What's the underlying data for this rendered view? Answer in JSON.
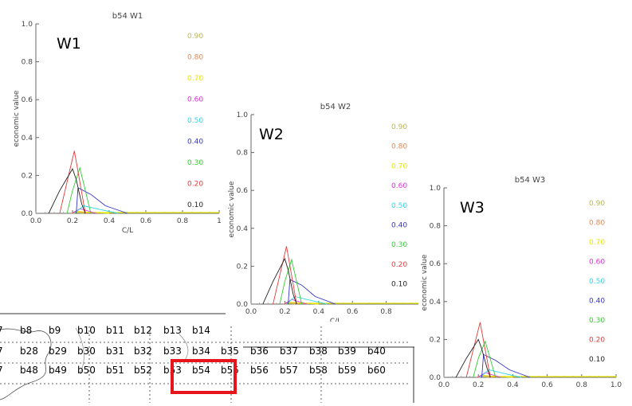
{
  "map": {
    "rows": [
      {
        "labels": [
          "7",
          "b8",
          "b9",
          "b10",
          "b11",
          "b12",
          "b13",
          "b14"
        ]
      },
      {
        "labels": [
          "7",
          "b28",
          "b29",
          "b30",
          "b31",
          "b32",
          "b33",
          "b34",
          "b35",
          "b36",
          "b37",
          "b38",
          "b39",
          "b40"
        ]
      },
      {
        "labels": [
          "7",
          "b48",
          "b49",
          "b50",
          "b51",
          "b52",
          "b53",
          "b54",
          "b55",
          "b56",
          "b57",
          "b58",
          "b59",
          "b60"
        ]
      }
    ],
    "highlight_box": "b54",
    "highlight_color": "#e8141c"
  },
  "chart_data": [
    {
      "type": "line",
      "title": "b54 W1",
      "panel_label": "W1",
      "xlabel": "C/L",
      "ylabel": "economic value",
      "xlim": [
        0,
        1
      ],
      "ylim": [
        0,
        1
      ],
      "xticks": [
        "0.0",
        "0.2",
        "0.4",
        "0.6",
        "0.8",
        "1"
      ],
      "yticks": [
        "0.0",
        "0.2",
        "0.4",
        "0.6",
        "0.8",
        "1.0"
      ],
      "series": [
        {
          "name": "0.90",
          "color": "#b8b85a",
          "x": [
            0.2,
            0.225,
            0.26
          ],
          "y": [
            0,
            0.004,
            0
          ]
        },
        {
          "name": "0.80",
          "color": "#e88858",
          "x": [
            0.19,
            0.22,
            0.28
          ],
          "y": [
            0,
            0.012,
            0
          ]
        },
        {
          "name": "0.70",
          "color": "#e6e600",
          "x": [
            0.2,
            0.23,
            0.3,
            0.4
          ],
          "y": [
            0,
            0.01,
            0.005,
            0
          ]
        },
        {
          "name": "0.60",
          "color": "#dd30dd",
          "x": [
            0.2,
            0.24,
            0.33
          ],
          "y": [
            0,
            0.025,
            0
          ]
        },
        {
          "name": "0.50",
          "color": "#30d8e8",
          "x": [
            0.21,
            0.26,
            0.35,
            0.45
          ],
          "y": [
            0,
            0.04,
            0.02,
            0
          ]
        },
        {
          "name": "0.40",
          "color": "#3333cc",
          "x": [
            0.22,
            0.23,
            0.3,
            0.38,
            0.5
          ],
          "y": [
            0,
            0.135,
            0.1,
            0.04,
            0
          ]
        },
        {
          "name": "0.30",
          "color": "#33cc33",
          "x": [
            0.17,
            0.2,
            0.24,
            0.3
          ],
          "y": [
            0,
            0.12,
            0.24,
            0
          ]
        },
        {
          "name": "0.20",
          "color": "#e63b3b",
          "x": [
            0.13,
            0.21,
            0.27
          ],
          "y": [
            0,
            0.33,
            0
          ]
        },
        {
          "name": "0.10",
          "color": "#222222",
          "x": [
            0.07,
            0.13,
            0.2,
            0.22,
            0.25,
            0.27
          ],
          "y": [
            0,
            0.12,
            0.235,
            0.18,
            0.05,
            0
          ]
        }
      ]
    },
    {
      "type": "line",
      "title": "b54 W2",
      "panel_label": "W2",
      "xlabel": "C/L",
      "ylabel": "economic value",
      "xlim": [
        0,
        1
      ],
      "ylim": [
        0,
        1
      ],
      "xticks": [
        "0.0",
        "0.2",
        "0.4",
        "0.6",
        "0.8"
      ],
      "yticks": [
        "0.0",
        "0.2",
        "0.4",
        "0.6",
        "0.8",
        "1.0"
      ],
      "series": [
        {
          "name": "0.90",
          "color": "#b8b85a",
          "x": [
            0.2,
            0.225,
            0.26
          ],
          "y": [
            0,
            0.004,
            0
          ]
        },
        {
          "name": "0.80",
          "color": "#e88858",
          "x": [
            0.19,
            0.22,
            0.28
          ],
          "y": [
            0,
            0.012,
            0
          ]
        },
        {
          "name": "0.70",
          "color": "#e6e600",
          "x": [
            0.2,
            0.23,
            0.3,
            0.4
          ],
          "y": [
            0,
            0.01,
            0.005,
            0
          ]
        },
        {
          "name": "0.60",
          "color": "#dd30dd",
          "x": [
            0.2,
            0.24,
            0.33
          ],
          "y": [
            0,
            0.025,
            0
          ]
        },
        {
          "name": "0.50",
          "color": "#30d8e8",
          "x": [
            0.21,
            0.26,
            0.35,
            0.45
          ],
          "y": [
            0,
            0.04,
            0.02,
            0
          ]
        },
        {
          "name": "0.40",
          "color": "#3333cc",
          "x": [
            0.22,
            0.23,
            0.3,
            0.38,
            0.5
          ],
          "y": [
            0,
            0.13,
            0.1,
            0.04,
            0
          ]
        },
        {
          "name": "0.30",
          "color": "#33cc33",
          "x": [
            0.17,
            0.2,
            0.24,
            0.3
          ],
          "y": [
            0,
            0.12,
            0.235,
            0
          ]
        },
        {
          "name": "0.20",
          "color": "#e63b3b",
          "x": [
            0.13,
            0.21,
            0.27
          ],
          "y": [
            0,
            0.305,
            0
          ]
        },
        {
          "name": "0.10",
          "color": "#222222",
          "x": [
            0.07,
            0.13,
            0.2,
            0.22,
            0.25,
            0.27
          ],
          "y": [
            0,
            0.12,
            0.24,
            0.18,
            0.05,
            0
          ]
        }
      ]
    },
    {
      "type": "line",
      "title": "b54 W3",
      "panel_label": "W3",
      "xlabel": "",
      "ylabel": "economic value",
      "xlim": [
        0,
        1
      ],
      "ylim": [
        0,
        1
      ],
      "xticks": [
        "0.0",
        "0.2",
        "0.4",
        "0.6",
        "0.8",
        "1.0"
      ],
      "yticks": [
        "0.0",
        "0.2",
        "0.4",
        "0.6",
        "0.8",
        "1.0"
      ],
      "series": [
        {
          "name": "0.90",
          "color": "#b8b85a",
          "x": [
            0.2,
            0.225,
            0.26
          ],
          "y": [
            0,
            0.004,
            0
          ]
        },
        {
          "name": "0.80",
          "color": "#e88858",
          "x": [
            0.19,
            0.22,
            0.28
          ],
          "y": [
            0,
            0.012,
            0
          ]
        },
        {
          "name": "0.70",
          "color": "#e6e600",
          "x": [
            0.2,
            0.23,
            0.3,
            0.4
          ],
          "y": [
            0,
            0.01,
            0.005,
            0
          ]
        },
        {
          "name": "0.60",
          "color": "#dd30dd",
          "x": [
            0.2,
            0.24,
            0.33
          ],
          "y": [
            0,
            0.025,
            0
          ]
        },
        {
          "name": "0.50",
          "color": "#30d8e8",
          "x": [
            0.21,
            0.26,
            0.35,
            0.45
          ],
          "y": [
            0,
            0.04,
            0.02,
            0
          ]
        },
        {
          "name": "0.40",
          "color": "#3333cc",
          "x": [
            0.22,
            0.23,
            0.3,
            0.38,
            0.5
          ],
          "y": [
            0,
            0.12,
            0.09,
            0.04,
            0
          ]
        },
        {
          "name": "0.30",
          "color": "#33cc33",
          "x": [
            0.17,
            0.2,
            0.24,
            0.3
          ],
          "y": [
            0,
            0.1,
            0.19,
            0
          ]
        },
        {
          "name": "0.20",
          "color": "#e63b3b",
          "x": [
            0.13,
            0.21,
            0.27
          ],
          "y": [
            0,
            0.29,
            0
          ]
        },
        {
          "name": "0.10",
          "color": "#222222",
          "x": [
            0.07,
            0.13,
            0.2,
            0.22,
            0.25,
            0.27
          ],
          "y": [
            0,
            0.1,
            0.2,
            0.15,
            0.05,
            0
          ]
        }
      ]
    }
  ]
}
